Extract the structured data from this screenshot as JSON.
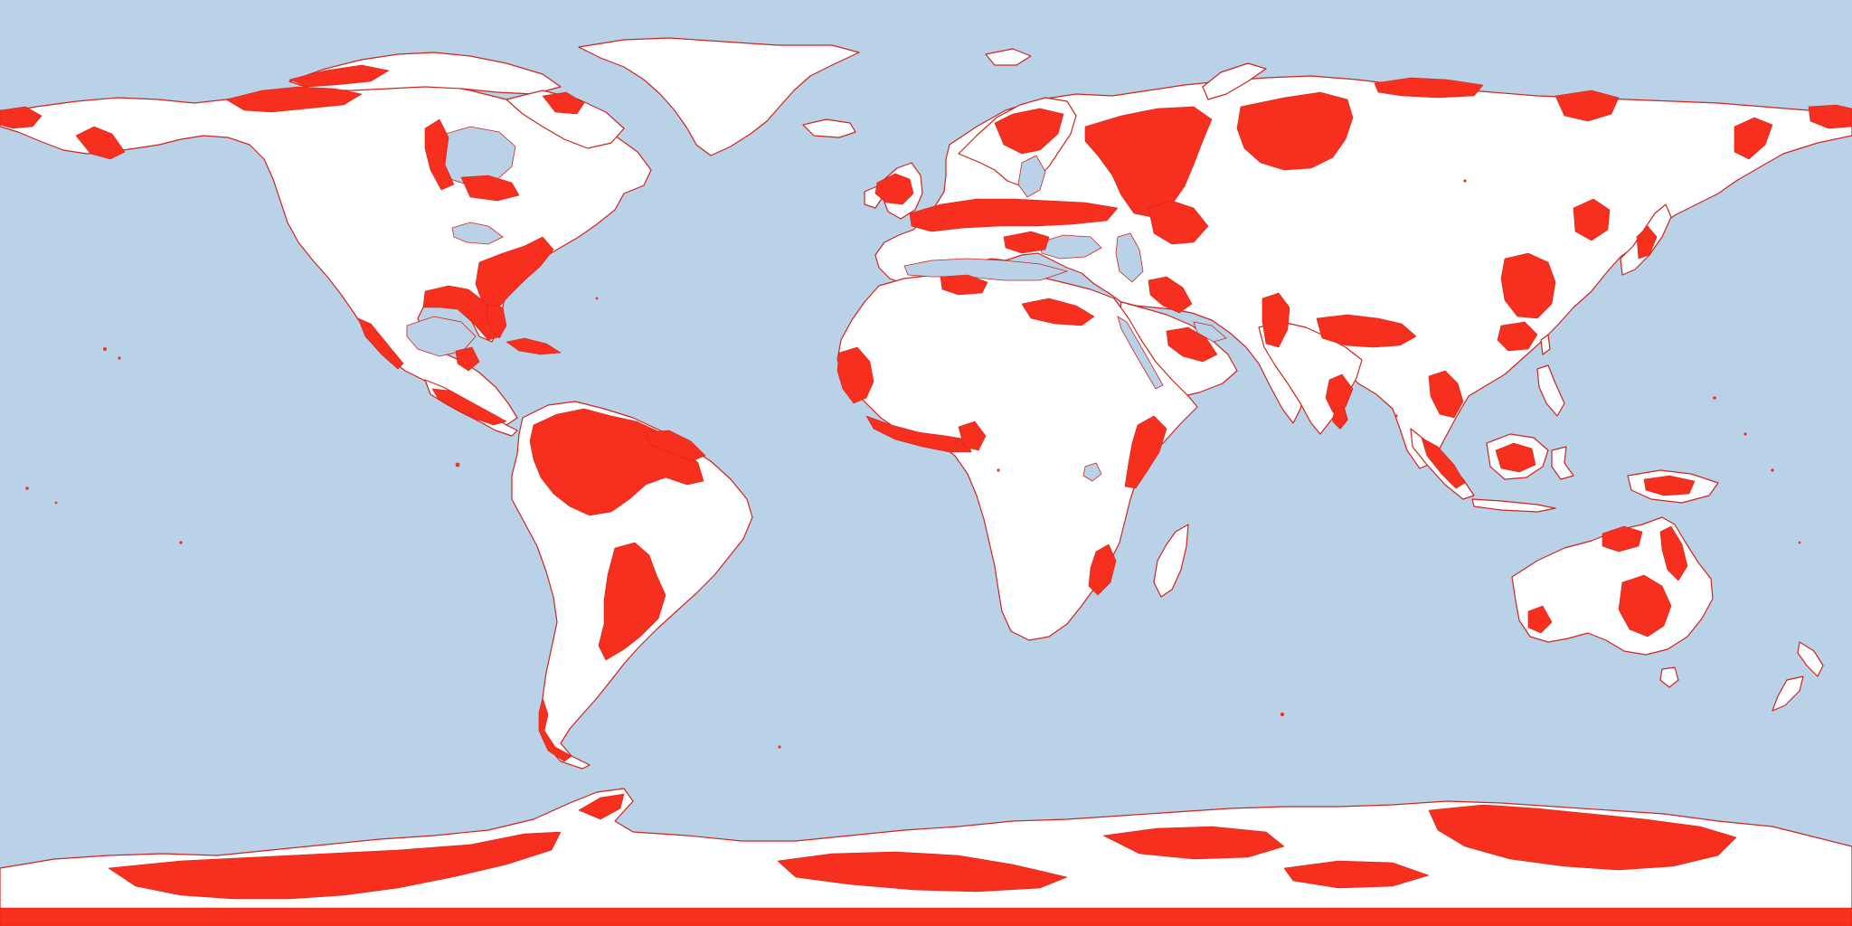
{
  "map": {
    "projection": "equirectangular",
    "extent": {
      "lon": [
        -180,
        180
      ],
      "lat": [
        -90,
        90
      ]
    },
    "colors": {
      "ocean": "#b9d2e8",
      "land": "#ffffff",
      "highlight": "#f72f1f",
      "outline": "#d0241b"
    },
    "labels": []
  }
}
